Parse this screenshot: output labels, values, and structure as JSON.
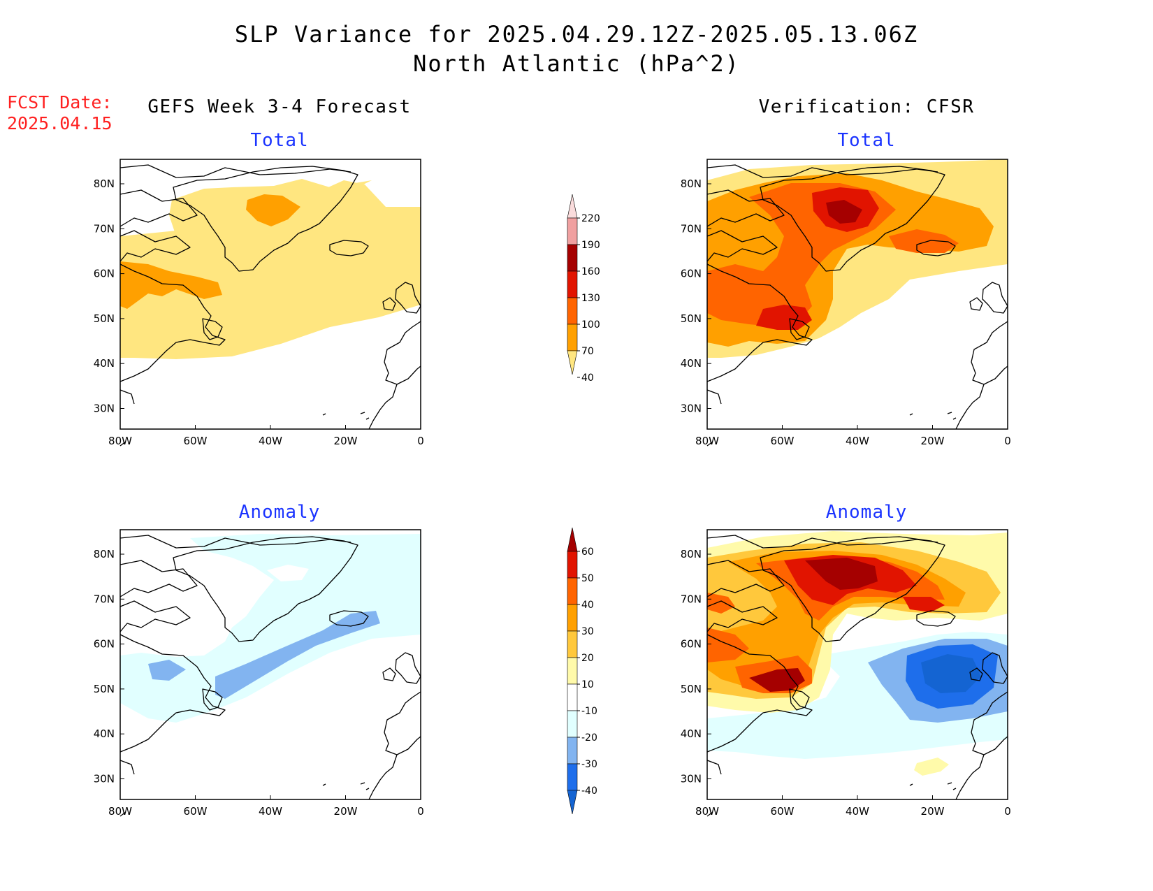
{
  "title": {
    "line1": "SLP Variance for 2025.04.29.12Z-2025.05.13.06Z",
    "line2": "North Atlantic (hPa^2)"
  },
  "fcst_date": {
    "label": "FCST Date:",
    "value": "2025.04.15"
  },
  "columns": {
    "left": "GEFS Week 3-4 Forecast",
    "right": "Verification: CFSR"
  },
  "panels": {
    "total": "Total",
    "anomaly": "Anomaly"
  },
  "axes": {
    "lon_labels": [
      "80W",
      "60W",
      "40W",
      "20W",
      "0"
    ],
    "lat_labels": [
      "80N",
      "70N",
      "60N",
      "50N",
      "40N",
      "30N"
    ]
  },
  "colorbar_total": {
    "levels": [
      "40",
      "70",
      "100",
      "130",
      "160",
      "190",
      "220"
    ],
    "colors": [
      "#ffe680",
      "#ffa000",
      "#ff6400",
      "#e11400",
      "#a50000",
      "#f0a0a0",
      "#fadcdc"
    ]
  },
  "colorbar_anomaly": {
    "levels": [
      "-40",
      "-30",
      "-20",
      "-10",
      "10",
      "20",
      "30",
      "40",
      "50",
      "60"
    ],
    "colors": [
      "#1464d2",
      "#1e6eeb",
      "#82b4f0",
      "#e1ffff",
      "#ffffff",
      "#fffaaa",
      "#ffc83c",
      "#ffa000",
      "#ff6400",
      "#e11400",
      "#a50000"
    ]
  }
}
